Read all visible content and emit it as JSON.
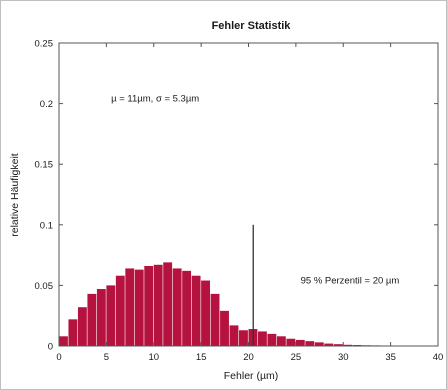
{
  "chart_data": {
    "type": "bar",
    "title": "Fehler Statistik",
    "xlabel": "Fehler (µm)",
    "ylabel": "relative Häufigkeit",
    "xlim": [
      0,
      40
    ],
    "ylim": [
      0,
      0.25
    ],
    "x_ticks": [
      "0",
      "5",
      "10",
      "15",
      "20",
      "25",
      "30",
      "35",
      "40"
    ],
    "x_tick_values": [
      0,
      5,
      10,
      15,
      20,
      25,
      30,
      35,
      40
    ],
    "y_ticks": [
      "0",
      "0.05",
      "0.1",
      "0.15",
      "0.2",
      "0.25"
    ],
    "y_tick_values": [
      0,
      0.05,
      0.1,
      0.15,
      0.2,
      0.25
    ],
    "grid": false,
    "bar_color": "#b5123f",
    "bin_width": 1,
    "bin_starts": [
      0,
      1,
      2,
      3,
      4,
      5,
      6,
      7,
      8,
      9,
      10,
      11,
      12,
      13,
      14,
      15,
      16,
      17,
      18,
      19,
      20,
      21,
      22,
      23,
      24,
      25,
      26,
      27,
      28,
      29,
      30,
      31,
      32,
      33,
      34,
      35,
      36
    ],
    "values": [
      0.008,
      0.022,
      0.032,
      0.043,
      0.047,
      0.05,
      0.058,
      0.064,
      0.063,
      0.066,
      0.067,
      0.069,
      0.064,
      0.062,
      0.058,
      0.054,
      0.043,
      0.029,
      0.017,
      0.013,
      0.014,
      0.012,
      0.01,
      0.008,
      0.006,
      0.005,
      0.004,
      0.003,
      0.002,
      0.0015,
      0.001,
      0.0008,
      0.0006,
      0.0005,
      0.0004,
      0.0003,
      0.0002
    ],
    "percentile_line": {
      "x": 20.5,
      "y": 0.1
    },
    "annotations": [
      {
        "text": "µ = 11µm,  σ = 5.3µm",
        "x": 5.5,
        "y": 0.2
      },
      {
        "text": "95 % Perzentil = 20  µm",
        "x": 25.5,
        "y": 0.05
      }
    ]
  }
}
